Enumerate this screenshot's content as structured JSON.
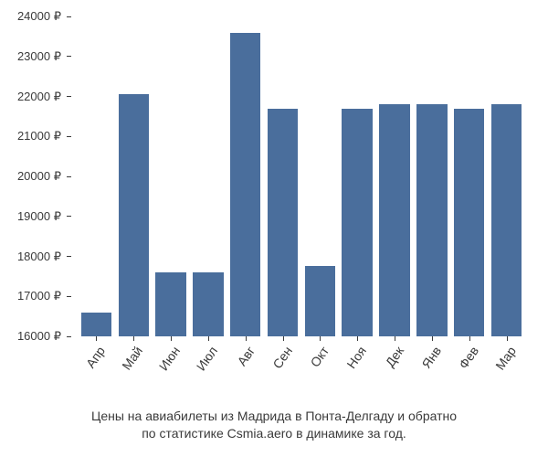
{
  "chart": {
    "type": "bar",
    "categories": [
      "Апр",
      "Май",
      "Июн",
      "Июл",
      "Авг",
      "Сен",
      "Окт",
      "Ноя",
      "Дек",
      "Янв",
      "Фев",
      "Мар"
    ],
    "values": [
      16600,
      22050,
      17600,
      17600,
      23600,
      21700,
      17750,
      21700,
      21800,
      21800,
      21700,
      21800
    ],
    "bar_color": "#4a6e9c",
    "background_color": "#ffffff",
    "text_color": "#3a3a3a",
    "ylim_min": 16000,
    "ylim_max": 24000,
    "ytick_step": 1000,
    "y_suffix": " ₽",
    "bar_width": 0.82,
    "axis_fontsize": 13,
    "xaxis_fontsize": 14,
    "x_label_rotation": -55
  },
  "caption": {
    "line1": "Цены на авиабилеты из Мадрида в Понта-Делгаду и обратно",
    "line2": "по статистике Csmia.aero в динамике за год.",
    "fontsize": 14
  }
}
